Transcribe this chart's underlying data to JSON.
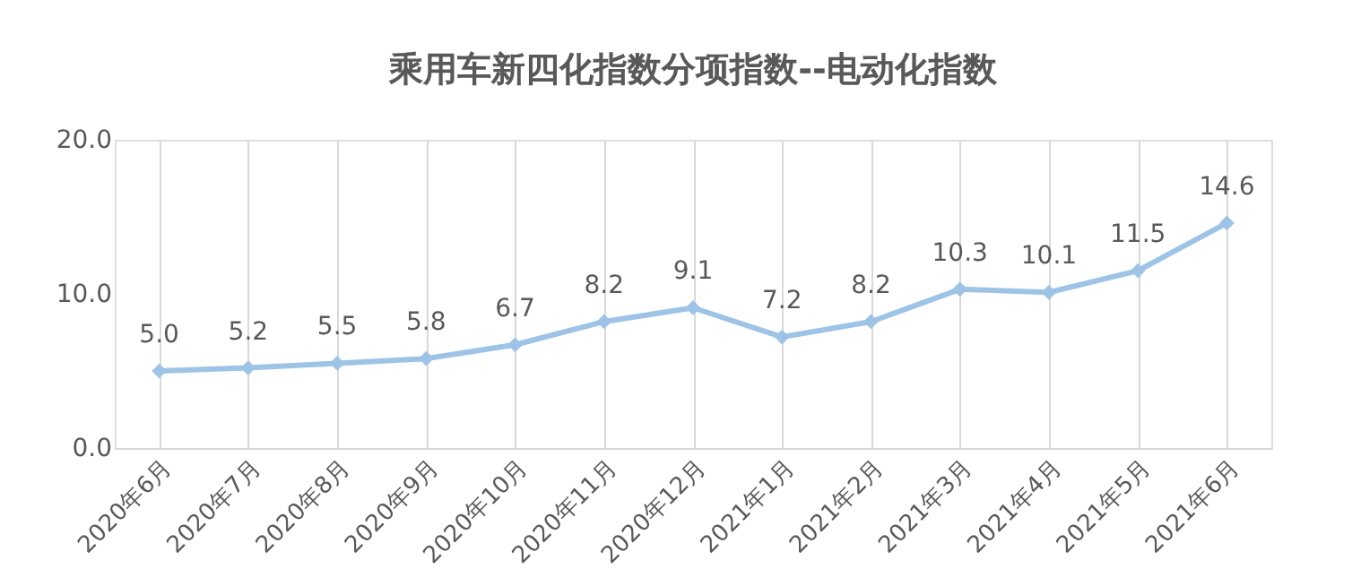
{
  "chart_data": {
    "type": "line",
    "title": "乘用车新四化指数分项指数--电动化指数",
    "categories": [
      "2020年6月",
      "2020年7月",
      "2020年8月",
      "2020年9月",
      "2020年10月",
      "2020年11月",
      "2020年12月",
      "2021年1月",
      "2021年2月",
      "2021年3月",
      "2021年4月",
      "2021年5月",
      "2021年6月"
    ],
    "series": [
      {
        "color": "#9dc3e6",
        "values": [
          5.0,
          5.2,
          5.5,
          5.8,
          6.7,
          8.2,
          9.1,
          7.2,
          8.2,
          10.3,
          10.1,
          11.5,
          14.6
        ]
      }
    ],
    "ylim": [
      0,
      20
    ],
    "yticks": [
      {
        "value": 0,
        "label": "0.0"
      },
      {
        "value": 10,
        "label": "10.0"
      },
      {
        "value": 20,
        "label": "20.0"
      }
    ],
    "value_labels": [
      "5.0",
      "5.2",
      "5.5",
      "5.8",
      "6.7",
      "8.2",
      "9.1",
      "7.2",
      "8.2",
      "10.3",
      "10.1",
      "11.5",
      "14.6"
    ],
    "marker": "diamond",
    "line_style": "solid",
    "grid": "x"
  }
}
